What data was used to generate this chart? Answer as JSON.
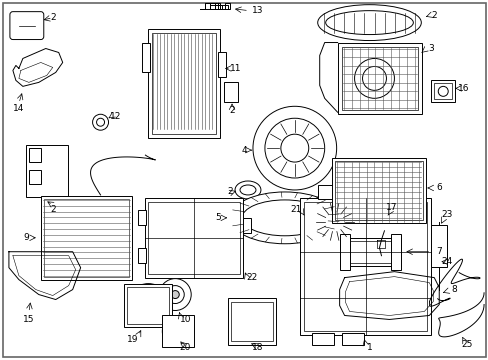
{
  "background_color": "#ffffff",
  "text_color": "#000000",
  "fig_width": 4.89,
  "fig_height": 3.6,
  "dpi": 100,
  "lw": 0.7,
  "fs": 6.5
}
